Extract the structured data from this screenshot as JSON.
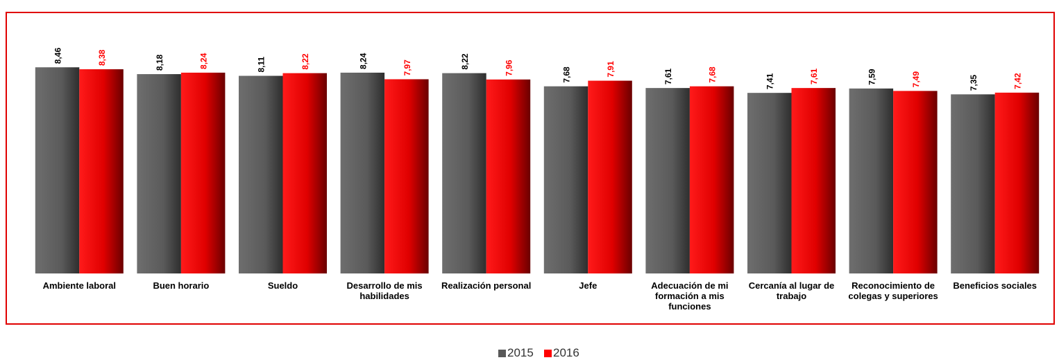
{
  "chart_data": {
    "type": "bar",
    "categories": [
      "Ambiente laboral",
      "Buen horario",
      "Sueldo",
      "Desarrollo de mis habilidades",
      "Realización personal",
      "Jefe",
      "Adecuación de mi formación a mis funciones",
      "Cercanía al lugar de trabajo",
      "Reconocimiento de colegas y superiores",
      "Beneficios sociales"
    ],
    "series": [
      {
        "name": "2015",
        "color": "#595959",
        "values": [
          8.46,
          8.18,
          8.11,
          8.24,
          8.22,
          7.68,
          7.61,
          7.41,
          7.59,
          7.35
        ],
        "value_labels": [
          "8,46",
          "8,18",
          "8,11",
          "8,24",
          "8,22",
          "7,68",
          "7,61",
          "7,41",
          "7,59",
          "7,35"
        ]
      },
      {
        "name": "2016",
        "color": "#ff0000",
        "values": [
          8.38,
          8.24,
          8.22,
          7.97,
          7.96,
          7.91,
          7.68,
          7.61,
          7.49,
          7.42
        ],
        "value_labels": [
          "8,38",
          "8,24",
          "8,22",
          "7,97",
          "7,96",
          "7,91",
          "7,68",
          "7,61",
          "7,49",
          "7,42"
        ]
      }
    ],
    "ylim": [
      0,
      10
    ],
    "legend": "bottom"
  }
}
